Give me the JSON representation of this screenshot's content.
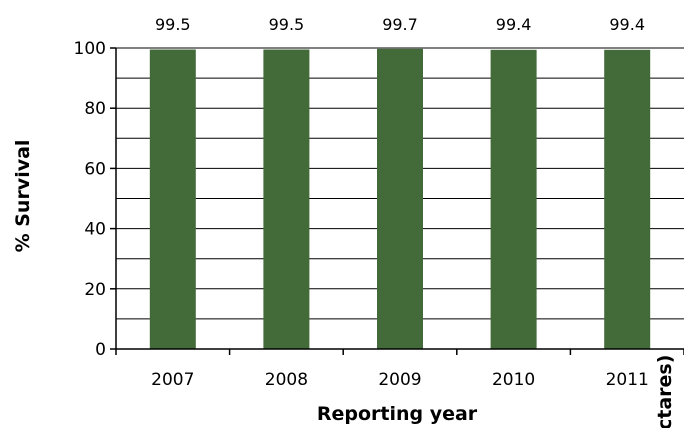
{
  "chart_data": {
    "type": "bar",
    "categories": [
      "2007",
      "2008",
      "2009",
      "2010",
      "2011"
    ],
    "values": [
      99.5,
      99.5,
      99.7,
      99.4,
      99.4
    ],
    "data_labels": [
      "99.5",
      "99.5",
      "99.7",
      "99.4",
      "99.4"
    ],
    "xlabel": "Reporting year",
    "ylabel": "% Survival",
    "ylim": [
      0,
      100
    ],
    "yticks": [
      "0",
      "20",
      "40",
      "60",
      "80",
      "100"
    ],
    "grid": true,
    "legend": "none",
    "bar_color": "#426b39",
    "cut_off_text": "ctares)"
  }
}
